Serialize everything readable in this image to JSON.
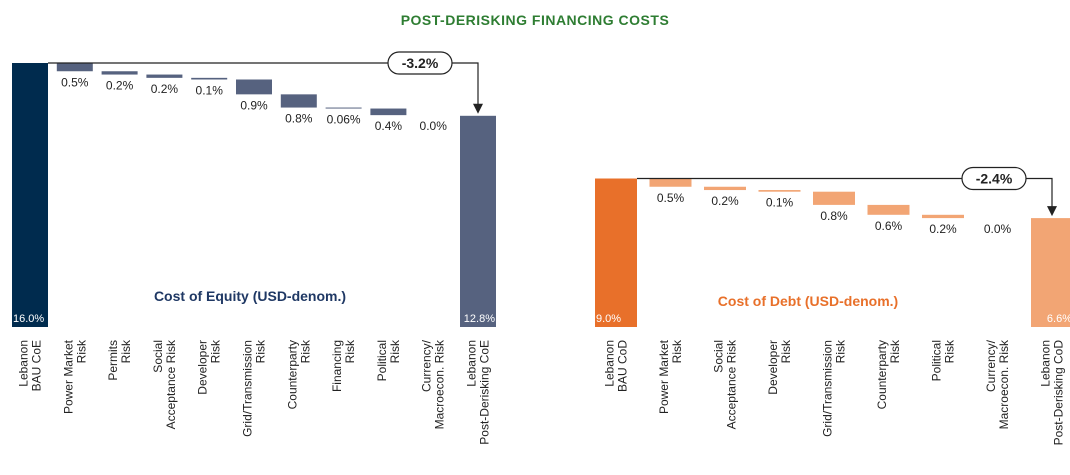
{
  "title": "POST-DERISKING FINANCING COSTS",
  "chart_data": [
    {
      "type": "waterfall",
      "subtitle": "Cost of Equity (USD-denom.)",
      "categories": [
        "Lebanon\nBAU CoE",
        "Power Market\nRisk",
        "Permits\nRisk",
        "Social\nAcceptance Risk",
        "Developer\nRisk",
        "Grid/Transmission\nRisk",
        "Counterparty\nRisk",
        "Financing\nRisk",
        "Political\nRisk",
        "Currency/\nMacroecon. Risk",
        "Lebanon\nPost-Derisking CoE"
      ],
      "measure": [
        "total",
        "decrease",
        "decrease",
        "decrease",
        "decrease",
        "decrease",
        "decrease",
        "decrease",
        "decrease",
        "decrease",
        "total"
      ],
      "values": [
        16.0,
        0.5,
        0.2,
        0.2,
        0.1,
        0.9,
        0.8,
        0.06,
        0.4,
        0.0,
        12.8
      ],
      "value_labels": [
        "16.0%",
        "0.5%",
        "0.2%",
        "0.2%",
        "0.1%",
        "0.9%",
        "0.8%",
        "0.06%",
        "0.4%",
        "0.0%",
        "12.8%"
      ],
      "colors": {
        "start": "#002b4e",
        "step": "#56627f",
        "end": "#56627f",
        "subtitle": "#1f3864"
      },
      "change": {
        "value": -3.2,
        "label": "-3.2%"
      }
    },
    {
      "type": "waterfall",
      "subtitle": "Cost of Debt (USD-denom.)",
      "categories": [
        "Lebanon\nBAU CoD",
        "Power Market\nRisk",
        "Social\nAcceptance Risk",
        "Developer\nRisk",
        "Grid/Transmission\nRisk",
        "Counterparty\nRisk",
        "Political\nRisk",
        "Currency/\nMacroecon. Risk",
        "Lebanon\nPost-Derisking CoD"
      ],
      "measure": [
        "total",
        "decrease",
        "decrease",
        "decrease",
        "decrease",
        "decrease",
        "decrease",
        "decrease",
        "total"
      ],
      "values": [
        9.0,
        0.5,
        0.2,
        0.1,
        0.8,
        0.6,
        0.2,
        0.0,
        6.6
      ],
      "value_labels": [
        "9.0%",
        "0.5%",
        "0.2%",
        "0.1%",
        "0.8%",
        "0.6%",
        "0.2%",
        "0.0%",
        "6.6%"
      ],
      "colors": {
        "start": "#e8702a",
        "step": "#f2a574",
        "end": "#f2a574",
        "subtitle": "#e8702a"
      },
      "change": {
        "value": -2.4,
        "label": "-2.4%"
      }
    }
  ]
}
